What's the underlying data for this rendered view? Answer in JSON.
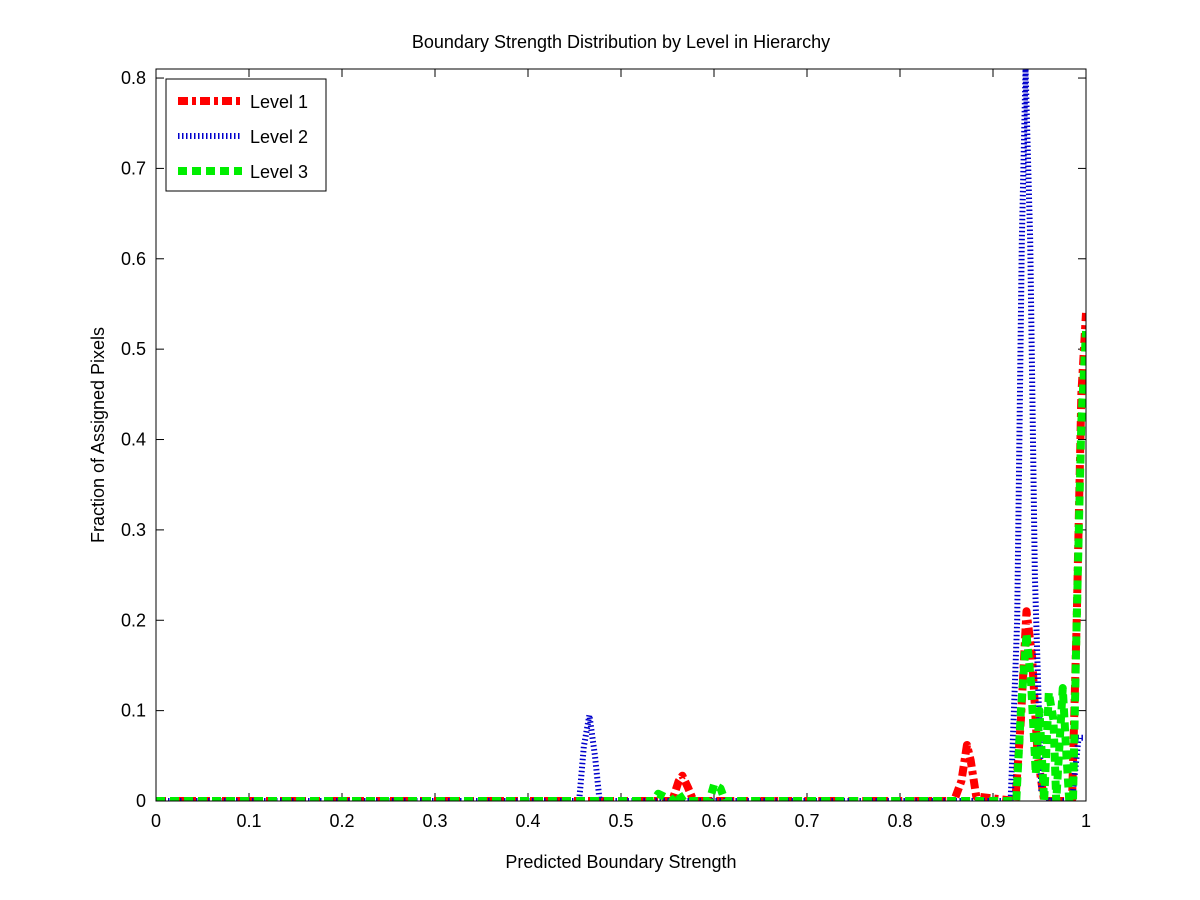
{
  "chart_data": {
    "type": "line",
    "title": "Boundary Strength Distribution by Level in Hierarchy",
    "xlabel": "Predicted Boundary Strength",
    "ylabel": "Fraction of Assigned Pixels",
    "xlim": [
      0,
      1
    ],
    "ylim": [
      0,
      0.81
    ],
    "x_ticks": [
      0,
      0.1,
      0.2,
      0.3,
      0.4,
      0.5,
      0.6,
      0.7,
      0.8,
      0.9,
      1
    ],
    "x_tick_labels": [
      "0",
      "0.1",
      "0.2",
      "0.3",
      "0.4",
      "0.5",
      "0.6",
      "0.7",
      "0.8",
      "0.9",
      "1"
    ],
    "y_ticks": [
      0,
      0.1,
      0.2,
      0.3,
      0.4,
      0.5,
      0.6,
      0.7,
      0.8
    ],
    "y_tick_labels": [
      "0",
      "0.1",
      "0.2",
      "0.3",
      "0.4",
      "0.5",
      "0.6",
      "0.7",
      "0.8"
    ],
    "grid": false,
    "legend_position": "top-left",
    "series": [
      {
        "name": "Level 1",
        "color": "#ff0000",
        "style": "dash-dot",
        "points": [
          [
            0,
            0
          ],
          [
            0.555,
            0
          ],
          [
            0.562,
            0.022
          ],
          [
            0.566,
            0.028
          ],
          [
            0.572,
            0.015
          ],
          [
            0.578,
            0
          ],
          [
            0.858,
            0
          ],
          [
            0.866,
            0.022
          ],
          [
            0.872,
            0.062
          ],
          [
            0.876,
            0.045
          ],
          [
            0.882,
            0.005
          ],
          [
            0.924,
            0
          ],
          [
            0.93,
            0.09
          ],
          [
            0.936,
            0.21
          ],
          [
            0.942,
            0.16
          ],
          [
            0.948,
            0.05
          ],
          [
            0.955,
            0
          ],
          [
            0.985,
            0
          ],
          [
            0.99,
            0.2
          ],
          [
            0.995,
            0.45
          ],
          [
            1.0,
            0.54
          ]
        ]
      },
      {
        "name": "Level 2",
        "color": "#0000cc",
        "style": "dotted",
        "points": [
          [
            0,
            0
          ],
          [
            0.455,
            0
          ],
          [
            0.46,
            0.06
          ],
          [
            0.466,
            0.095
          ],
          [
            0.472,
            0.05
          ],
          [
            0.477,
            0
          ],
          [
            0.919,
            0
          ],
          [
            0.926,
            0.2
          ],
          [
            0.931,
            0.62
          ],
          [
            0.935,
            0.81
          ],
          [
            0.94,
            0.62
          ],
          [
            0.945,
            0.25
          ],
          [
            0.952,
            0.01
          ],
          [
            0.96,
            0
          ],
          [
            0.985,
            0
          ],
          [
            0.992,
            0.07
          ],
          [
            1.0,
            0.07
          ]
        ]
      },
      {
        "name": "Level 3",
        "color": "#00ee00",
        "style": "dashed",
        "points": [
          [
            0,
            0
          ],
          [
            0.535,
            0
          ],
          [
            0.54,
            0.008
          ],
          [
            0.548,
            0.004
          ],
          [
            0.555,
            0
          ],
          [
            0.562,
            0.008
          ],
          [
            0.567,
            0
          ],
          [
            0.595,
            0
          ],
          [
            0.6,
            0.018
          ],
          [
            0.607,
            0.014
          ],
          [
            0.612,
            0
          ],
          [
            0.925,
            0
          ],
          [
            0.93,
            0.1
          ],
          [
            0.936,
            0.185
          ],
          [
            0.941,
            0.13
          ],
          [
            0.946,
            0.03
          ],
          [
            0.95,
            0.1
          ],
          [
            0.955,
            0
          ],
          [
            0.96,
            0.12
          ],
          [
            0.965,
            0.09
          ],
          [
            0.968,
            0
          ],
          [
            0.975,
            0.125
          ],
          [
            0.979,
            0.05
          ],
          [
            0.982,
            0
          ],
          [
            0.986,
            0
          ],
          [
            0.99,
            0.2
          ],
          [
            0.995,
            0.42
          ],
          [
            1.0,
            0.52
          ]
        ]
      }
    ]
  }
}
